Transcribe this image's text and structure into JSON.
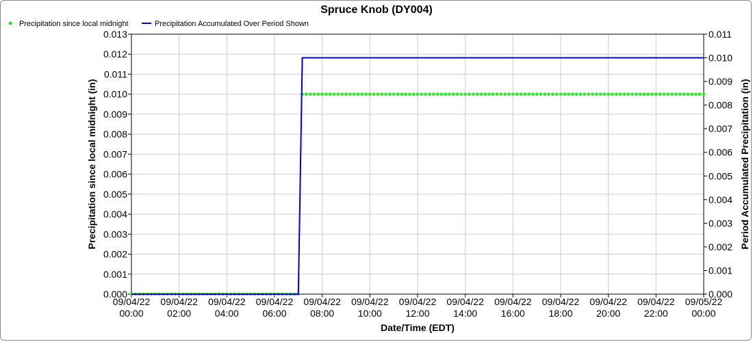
{
  "chart_data": {
    "type": "line",
    "title": "Spruce Knob (DY004)",
    "xlabel": "Date/Time (EDT)",
    "ylabel": "Precipitation since local midnight (in)",
    "y2label": "Period Accumulated Precipitation (in)",
    "x_ticks": [
      {
        "date": "09/04/22",
        "time": "00:00"
      },
      {
        "date": "09/04/22",
        "time": "02:00"
      },
      {
        "date": "09/04/22",
        "time": "04:00"
      },
      {
        "date": "09/04/22",
        "time": "06:00"
      },
      {
        "date": "09/04/22",
        "time": "08:00"
      },
      {
        "date": "09/04/22",
        "time": "10:00"
      },
      {
        "date": "09/04/22",
        "time": "12:00"
      },
      {
        "date": "09/04/22",
        "time": "14:00"
      },
      {
        "date": "09/04/22",
        "time": "16:00"
      },
      {
        "date": "09/04/22",
        "time": "18:00"
      },
      {
        "date": "09/04/22",
        "time": "20:00"
      },
      {
        "date": "09/04/22",
        "time": "22:00"
      },
      {
        "date": "09/05/22",
        "time": "00:00"
      }
    ],
    "xlim": [
      "09/04/22 00:00",
      "09/05/22 00:00"
    ],
    "ylim": [
      0,
      0.013
    ],
    "y_ticks": [
      "0.000",
      "0.001",
      "0.002",
      "0.003",
      "0.004",
      "0.005",
      "0.006",
      "0.007",
      "0.008",
      "0.009",
      "0.010",
      "0.011",
      "0.012",
      "0.013"
    ],
    "y2lim": [
      0,
      0.011
    ],
    "y2_ticks": [
      "0.000",
      "0.001",
      "0.002",
      "0.003",
      "0.004",
      "0.005",
      "0.006",
      "0.007",
      "0.008",
      "0.009",
      "0.010",
      "0.011"
    ],
    "grid": true,
    "legend_position": "top-left",
    "series": [
      {
        "name": "Precipitation since local midnight",
        "axis": "left",
        "style": "dots",
        "color": "#22ee22",
        "interval_minutes": 10,
        "segments": [
          {
            "from": "09/04/22 00:00",
            "to": "09/04/22 07:00",
            "value": 0.0
          },
          {
            "from": "09/04/22 07:10",
            "to": "09/05/22 00:00",
            "value": 0.01
          }
        ]
      },
      {
        "name": "Precipitation Accumulated Over Period Shown",
        "axis": "right",
        "style": "line",
        "color": "#0000cc",
        "points": [
          {
            "x": "09/04/22 00:00",
            "y": 0.0
          },
          {
            "x": "09/04/22 07:00",
            "y": 0.0
          },
          {
            "x": "09/04/22 07:10",
            "y": 0.01
          },
          {
            "x": "09/05/22 00:00",
            "y": 0.01
          }
        ]
      }
    ]
  }
}
